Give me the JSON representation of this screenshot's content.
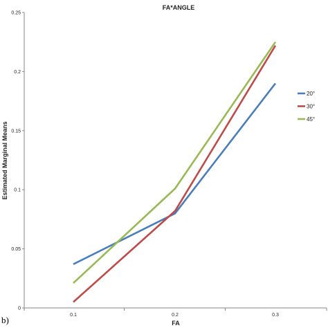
{
  "panel_label": "b)",
  "chart_data": {
    "type": "line",
    "title": "FA*ANGLE",
    "xlabel": "FA",
    "ylabel": "Estimated Marginal Means",
    "categories": [
      "0.1",
      "0.2",
      "0.3"
    ],
    "y_ticks": [
      "0",
      "0.05",
      "0.1",
      "0.15",
      "0.2",
      "0.25"
    ],
    "ylim": [
      0,
      0.25
    ],
    "grid": false,
    "legend_position": "right",
    "series": [
      {
        "name": "20°",
        "color": "#4a7ebb",
        "values": [
          0.037,
          0.08,
          0.19
        ]
      },
      {
        "name": "30°",
        "color": "#be4b48",
        "values": [
          0.005,
          0.082,
          0.222
        ]
      },
      {
        "name": "45°",
        "color": "#98b954",
        "values": [
          0.021,
          0.101,
          0.225
        ]
      }
    ]
  }
}
